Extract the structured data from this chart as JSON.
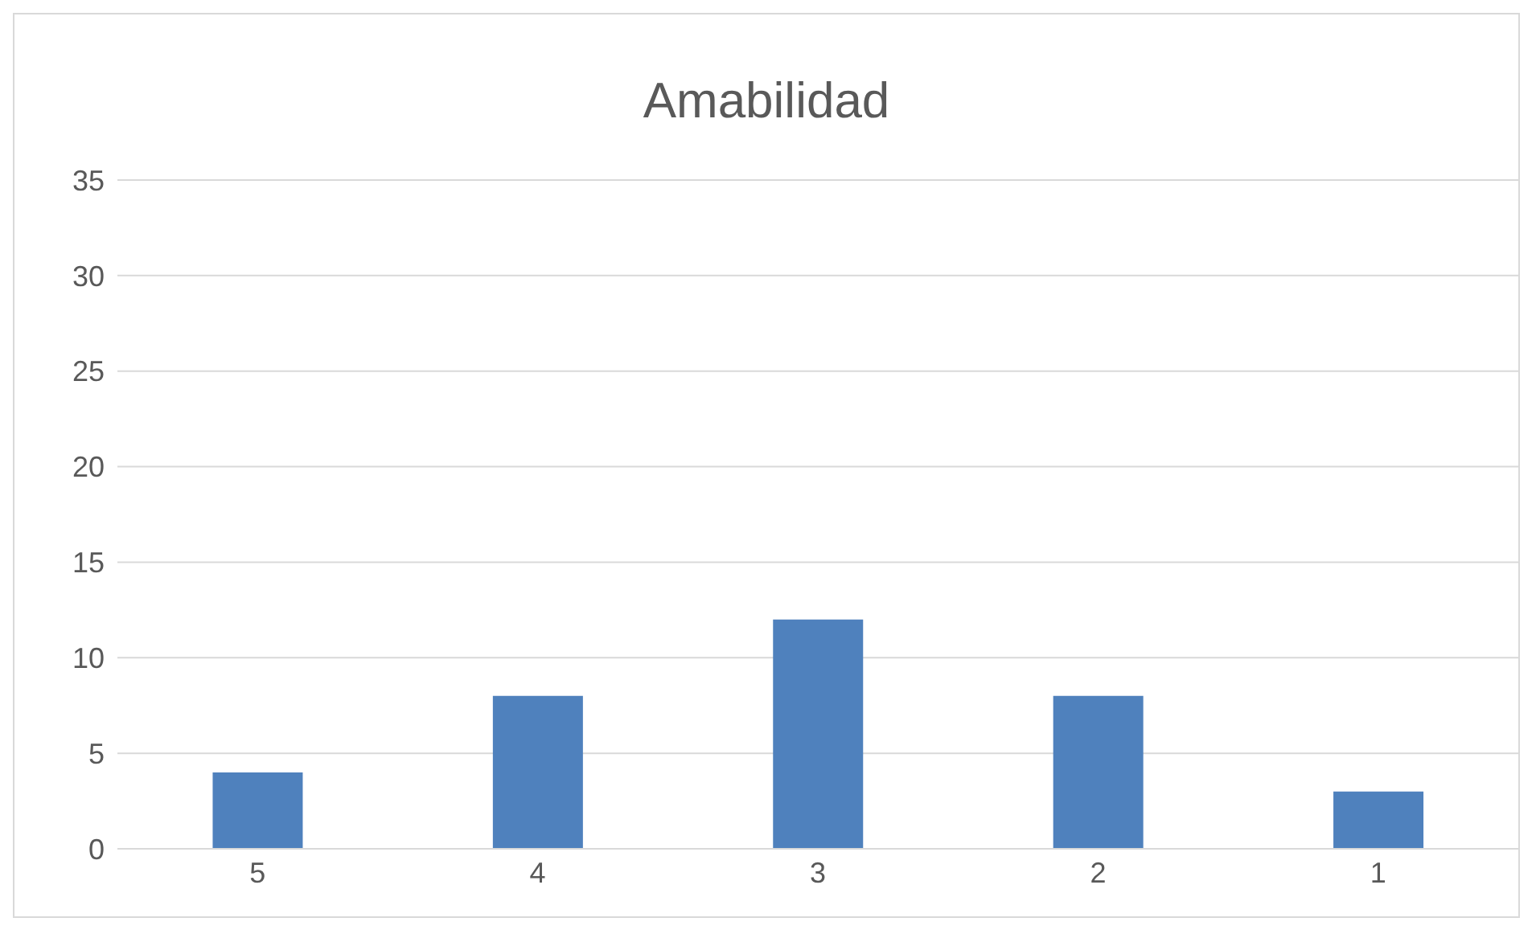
{
  "chart_data": {
    "type": "bar",
    "title": "Amabilidad",
    "categories": [
      "5",
      "4",
      "3",
      "2",
      "1"
    ],
    "values": [
      4,
      8,
      12,
      8,
      3
    ],
    "color": "#4f81bd",
    "ylim": [
      0,
      35
    ],
    "yticks": [
      0,
      5,
      10,
      15,
      20,
      25,
      30,
      35
    ],
    "grid": "y",
    "legend": false
  }
}
